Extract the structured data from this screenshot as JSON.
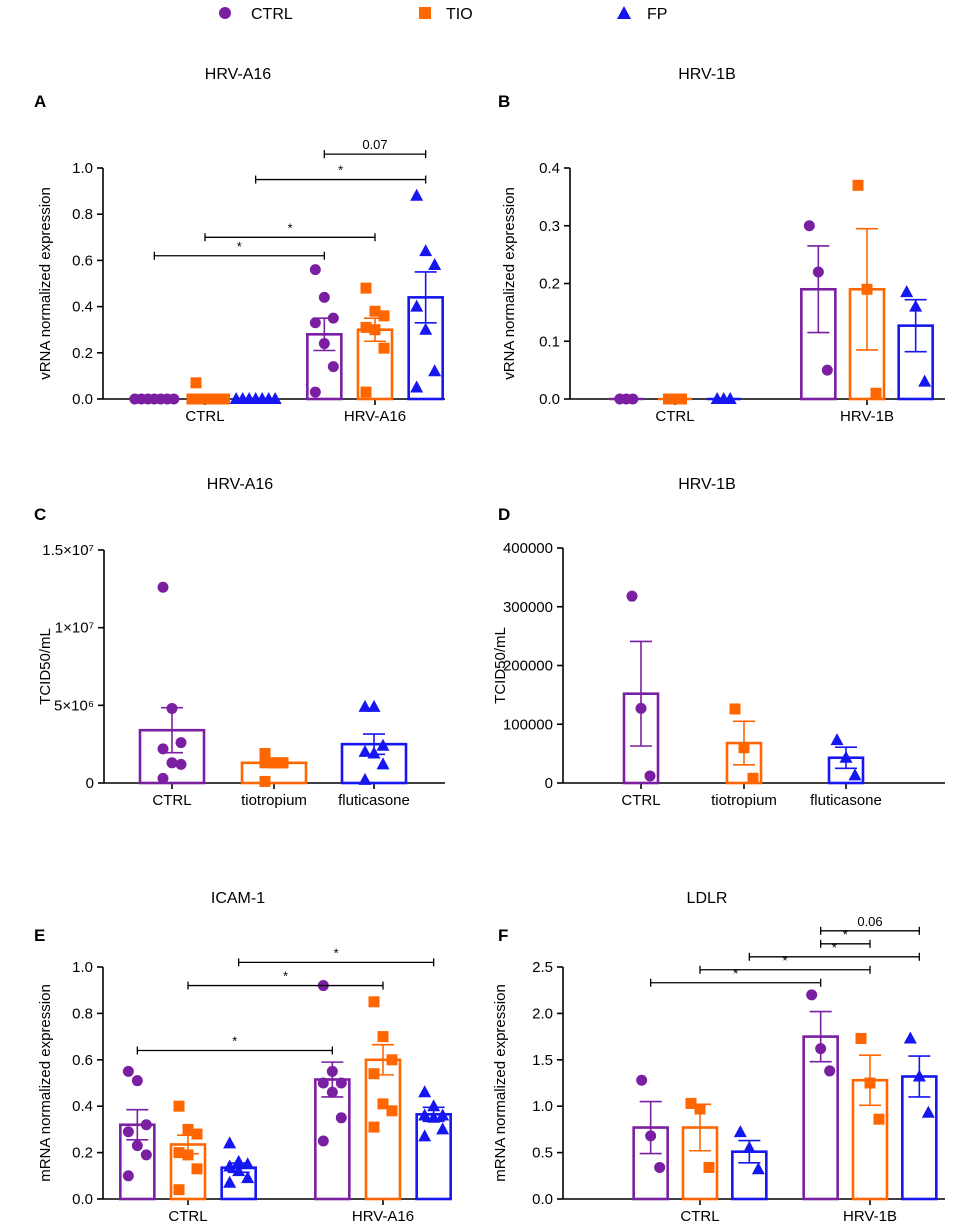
{
  "colors": {
    "CTRL": "#7b1fa2",
    "TIO": "#ff6600",
    "FP": "#1616f2",
    "axis": "#000000"
  },
  "legend": [
    {
      "key": "CTRL",
      "label": "CTRL",
      "marker": "circle"
    },
    {
      "key": "TIO",
      "label": "TIO",
      "marker": "square"
    },
    {
      "key": "FP",
      "label": "FP",
      "marker": "triangle"
    }
  ],
  "chart_data": [
    {
      "panel": "A",
      "type": "bar",
      "title": "HRV-A16",
      "ylabel": "vRNA normalized expression",
      "ylim": [
        0,
        1.0
      ],
      "yticks": [
        0,
        0.2,
        0.4,
        0.6,
        0.8,
        1.0
      ],
      "ytick_labels": [
        "0.0",
        "0.2",
        "0.4",
        "0.6",
        "0.8",
        "1.0"
      ],
      "groups": [
        "CTRL",
        "HRV-A16"
      ],
      "series": [
        {
          "name": "CTRL",
          "values": [
            0,
            0.28
          ],
          "sem": [
            0,
            0.07
          ],
          "points": [
            [
              0,
              0,
              0,
              0,
              0,
              0,
              0
            ],
            [
              0.56,
              0.44,
              0.35,
              0.33,
              0.24,
              0.14,
              0.03
            ]
          ]
        },
        {
          "name": "TIO",
          "values": [
            0.01,
            0.3
          ],
          "sem": [
            0,
            0.05
          ],
          "points": [
            [
              0.07,
              0,
              0,
              0,
              0,
              0,
              0
            ],
            [
              0.48,
              0.38,
              0.36,
              0.31,
              0.3,
              0.22,
              0.03
            ]
          ]
        },
        {
          "name": "FP",
          "values": [
            0,
            0.44
          ],
          "sem": [
            0,
            0.11
          ],
          "points": [
            [
              0,
              0,
              0,
              0,
              0,
              0,
              0
            ],
            [
              0.88,
              0.64,
              0.58,
              0.4,
              0.3,
              0.12,
              0.05
            ]
          ]
        }
      ],
      "comparisons": [
        {
          "from": [
            0,
            "CTRL"
          ],
          "to": [
            1,
            "CTRL"
          ],
          "label": "*",
          "y": 0.62
        },
        {
          "from": [
            0,
            "TIO"
          ],
          "to": [
            1,
            "TIO"
          ],
          "label": "*",
          "y": 0.7
        },
        {
          "from": [
            0,
            "FP"
          ],
          "to": [
            1,
            "FP"
          ],
          "label": "*",
          "y": 0.95
        },
        {
          "from": [
            1,
            "CTRL"
          ],
          "to": [
            1,
            "FP"
          ],
          "label": "0.07",
          "y": 1.06
        }
      ]
    },
    {
      "panel": "B",
      "type": "bar",
      "title": "HRV-1B",
      "ylabel": "vRNA normalized expression",
      "ylim": [
        0,
        0.4
      ],
      "yticks": [
        0,
        0.1,
        0.2,
        0.3,
        0.4
      ],
      "ytick_labels": [
        "0.0",
        "0.1",
        "0.2",
        "0.3",
        "0.4"
      ],
      "groups": [
        "CTRL",
        "HRV-1B"
      ],
      "series": [
        {
          "name": "CTRL",
          "values": [
            0,
            0.19
          ],
          "sem": [
            0,
            0.075
          ],
          "points": [
            [
              0,
              0,
              0
            ],
            [
              0.3,
              0.22,
              0.05
            ]
          ]
        },
        {
          "name": "TIO",
          "values": [
            0,
            0.19
          ],
          "sem": [
            0,
            0.105
          ],
          "points": [
            [
              0,
              0,
              0
            ],
            [
              0.37,
              0.19,
              0.01
            ]
          ]
        },
        {
          "name": "FP",
          "values": [
            0,
            0.127
          ],
          "sem": [
            0,
            0.045
          ],
          "points": [
            [
              0,
              0,
              0
            ],
            [
              0.185,
              0.16,
              0.03
            ]
          ]
        }
      ],
      "comparisons": []
    },
    {
      "panel": "C",
      "type": "bar",
      "title": "HRV-A16",
      "ylabel": "TCID50/mL",
      "ylim": [
        0,
        15000000
      ],
      "yticks": [
        0,
        5000000,
        10000000,
        15000000
      ],
      "ytick_labels": [
        "0",
        "5×10⁶",
        "1×10⁷",
        "1.5×10⁷"
      ],
      "groups": [
        "CTRL",
        "tiotropium",
        "fluticasone"
      ],
      "series": [
        {
          "name": "CTRL",
          "values": [
            3400000
          ],
          "sem": [
            1450000
          ],
          "points": [
            [
              12600000,
              4800000,
              2600000,
              2200000,
              1300000,
              1200000,
              300000
            ]
          ]
        },
        {
          "name": "TIO",
          "values": [
            1300000
          ],
          "sem": [
            150000
          ],
          "points": [
            [
              1900000,
              1300000,
              1300000,
              1300000,
              1300000,
              1300000,
              100000
            ]
          ]
        },
        {
          "name": "FP",
          "values": [
            2500000
          ],
          "sem": [
            650000
          ],
          "points": [
            [
              4900000,
              4900000,
              2400000,
              2000000,
              1900000,
              1200000,
              200000
            ]
          ]
        }
      ],
      "comparisons": []
    },
    {
      "panel": "D",
      "type": "bar",
      "title": "HRV-1B",
      "ylabel": "TCID50/mL",
      "ylim": [
        0,
        400000
      ],
      "yticks": [
        0,
        100000,
        200000,
        300000,
        400000
      ],
      "ytick_labels": [
        "0",
        "100000",
        "200000",
        "300000",
        "400000"
      ],
      "groups": [
        "CTRL",
        "tiotropium",
        "fluticasone"
      ],
      "series": [
        {
          "name": "CTRL",
          "values": [
            152000
          ],
          "sem": [
            89000
          ],
          "points": [
            [
              318000,
              127000,
              12000
            ]
          ]
        },
        {
          "name": "TIO",
          "values": [
            68000
          ],
          "sem": [
            37000
          ],
          "points": [
            [
              126000,
              60000,
              8000
            ]
          ]
        },
        {
          "name": "FP",
          "values": [
            43000
          ],
          "sem": [
            18000
          ],
          "points": [
            [
              73000,
              43000,
              13000
            ]
          ]
        }
      ],
      "comparisons": []
    },
    {
      "panel": "E",
      "type": "bar",
      "title": "ICAM-1",
      "ylabel": "mRNA normalized expression",
      "ylim": [
        0,
        1.0
      ],
      "yticks": [
        0,
        0.2,
        0.4,
        0.6,
        0.8,
        1.0
      ],
      "ytick_labels": [
        "0.0",
        "0.2",
        "0.4",
        "0.6",
        "0.8",
        "1.0"
      ],
      "groups": [
        "CTRL",
        "HRV-A16"
      ],
      "series": [
        {
          "name": "CTRL",
          "values": [
            0.32,
            0.515
          ],
          "sem": [
            0.065,
            0.075
          ],
          "points": [
            [
              0.55,
              0.51,
              0.32,
              0.29,
              0.23,
              0.19,
              0.1
            ],
            [
              0.92,
              0.55,
              0.5,
              0.5,
              0.46,
              0.35,
              0.25
            ]
          ]
        },
        {
          "name": "TIO",
          "values": [
            0.235,
            0.6
          ],
          "sem": [
            0.04,
            0.065
          ],
          "points": [
            [
              0.4,
              0.3,
              0.28,
              0.2,
              0.19,
              0.13,
              0.04
            ],
            [
              0.85,
              0.7,
              0.6,
              0.54,
              0.41,
              0.38,
              0.31
            ]
          ]
        },
        {
          "name": "FP",
          "values": [
            0.135,
            0.365
          ],
          "sem": [
            0.02,
            0.03
          ],
          "points": [
            [
              0.24,
              0.16,
              0.15,
              0.14,
              0.12,
              0.09,
              0.07
            ],
            [
              0.46,
              0.4,
              0.36,
              0.36,
              0.35,
              0.3,
              0.27
            ]
          ]
        }
      ],
      "comparisons": [
        {
          "from": [
            0,
            "CTRL"
          ],
          "to": [
            1,
            "CTRL"
          ],
          "label": "*",
          "y": 0.64
        },
        {
          "from": [
            0,
            "TIO"
          ],
          "to": [
            1,
            "TIO"
          ],
          "label": "*",
          "y": 0.92
        },
        {
          "from": [
            0,
            "FP"
          ],
          "to": [
            1,
            "FP"
          ],
          "label": "*",
          "y": 1.02
        }
      ]
    },
    {
      "panel": "F",
      "type": "bar",
      "title": "LDLR",
      "ylabel": "mRNA normalized expression",
      "ylim": [
        0,
        2.5
      ],
      "yticks": [
        0,
        0.5,
        1.0,
        1.5,
        2.0,
        2.5
      ],
      "ytick_labels": [
        "0.0",
        "0.5",
        "1.0",
        "1.5",
        "2.0",
        "2.5"
      ],
      "groups": [
        "CTRL",
        "HRV-1B"
      ],
      "series": [
        {
          "name": "CTRL",
          "values": [
            0.77,
            1.75
          ],
          "sem": [
            0.28,
            0.27
          ],
          "points": [
            [
              1.28,
              0.68,
              0.34
            ],
            [
              2.2,
              1.62,
              1.38
            ]
          ]
        },
        {
          "name": "TIO",
          "values": [
            0.77,
            1.28
          ],
          "sem": [
            0.25,
            0.27
          ],
          "points": [
            [
              1.03,
              0.97,
              0.34
            ],
            [
              1.73,
              1.25,
              0.86
            ]
          ]
        },
        {
          "name": "FP",
          "values": [
            0.51,
            1.32
          ],
          "sem": [
            0.12,
            0.22
          ],
          "points": [
            [
              0.72,
              0.55,
              0.32
            ],
            [
              1.73,
              1.32,
              0.93
            ]
          ]
        }
      ],
      "comparisons": [
        {
          "from": [
            0,
            "CTRL"
          ],
          "to": [
            1,
            "CTRL"
          ],
          "label": "*",
          "y": 2.33
        },
        {
          "from": [
            0,
            "TIO"
          ],
          "to": [
            1,
            "TIO"
          ],
          "label": "*",
          "y": 2.47
        },
        {
          "from": [
            0,
            "FP"
          ],
          "to": [
            1,
            "FP"
          ],
          "label": "*",
          "y": 2.61
        },
        {
          "from": [
            1,
            "CTRL"
          ],
          "to": [
            1,
            "TIO"
          ],
          "label": "*",
          "y": 2.75
        },
        {
          "from": [
            1,
            "CTRL"
          ],
          "to": [
            1,
            "FP"
          ],
          "label": "0.06",
          "y": 2.89
        }
      ]
    }
  ]
}
